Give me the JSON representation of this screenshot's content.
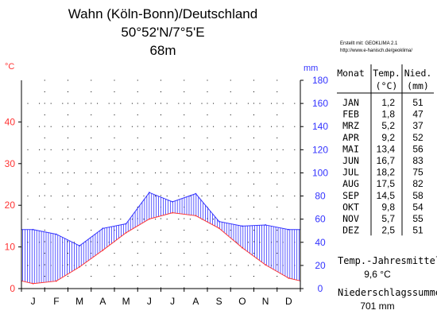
{
  "header": {
    "title_line1": "Wahn (Köln-Bonn)/Deutschland",
    "title_line2": "50°52'N/7°5'E",
    "title_line3": "68m"
  },
  "credit": {
    "line1": "Erstellt mit: GEOKLIMA 2.1",
    "line2": "http://www.e-hanisch.de/geoklima/"
  },
  "colors": {
    "temperature": "#ff3333",
    "precipitation": "#3333ff",
    "axis": "#000000",
    "grid_dots": "#000000"
  },
  "chart_data": {
    "type": "line",
    "categories": [
      "J",
      "F",
      "M",
      "A",
      "M",
      "J",
      "J",
      "A",
      "S",
      "O",
      "N",
      "D"
    ],
    "temp_axis": {
      "unit": "°C",
      "ticks": [
        0,
        10,
        20,
        30,
        40
      ],
      "range": [
        0,
        50
      ]
    },
    "precip_axis": {
      "unit": "mm",
      "ticks": [
        0,
        20,
        40,
        60,
        80,
        100,
        120,
        140,
        160,
        180
      ],
      "range": [
        0,
        180
      ]
    },
    "series": [
      {
        "name": "Temp.",
        "unit": "°C",
        "values": [
          1.2,
          1.8,
          5.2,
          9.2,
          13.4,
          16.7,
          18.2,
          17.5,
          14.5,
          9.8,
          5.7,
          2.5
        ]
      },
      {
        "name": "Nied.",
        "unit": "mm",
        "values": [
          51,
          47,
          37,
          52,
          56,
          83,
          75,
          82,
          58,
          54,
          55,
          51
        ]
      }
    ],
    "grid": "dotted",
    "fill": "vertical hatching between temperature and precipitation curves"
  },
  "table": {
    "headers": [
      {
        "line1": "Monat",
        "line2": ""
      },
      {
        "line1": "Temp.",
        "line2": "(°C)"
      },
      {
        "line1": "Nied.",
        "line2": "(mm)"
      }
    ],
    "rows": [
      {
        "month": "JAN",
        "temp": "1,2",
        "precip": "51"
      },
      {
        "month": "FEB",
        "temp": "1,8",
        "precip": "47"
      },
      {
        "month": "MRZ",
        "temp": "5,2",
        "precip": "37"
      },
      {
        "month": "APR",
        "temp": "9,2",
        "precip": "52"
      },
      {
        "month": "MAI",
        "temp": "13,4",
        "precip": "56"
      },
      {
        "month": "JUN",
        "temp": "16,7",
        "precip": "83"
      },
      {
        "month": "JUL",
        "temp": "18,2",
        "precip": "75"
      },
      {
        "month": "AUG",
        "temp": "17,5",
        "precip": "82"
      },
      {
        "month": "SEP",
        "temp": "14,5",
        "precip": "58"
      },
      {
        "month": "OKT",
        "temp": "9,8",
        "precip": "54"
      },
      {
        "month": "NOV",
        "temp": "5,7",
        "precip": "55"
      },
      {
        "month": "DEZ",
        "temp": "2,5",
        "precip": "51"
      }
    ]
  },
  "summary": {
    "temp_label": "Temp.-Jahresmittel",
    "temp_value": "9,6 °C",
    "precip_label": "Niederschlagssumme",
    "precip_value": "701 mm"
  }
}
